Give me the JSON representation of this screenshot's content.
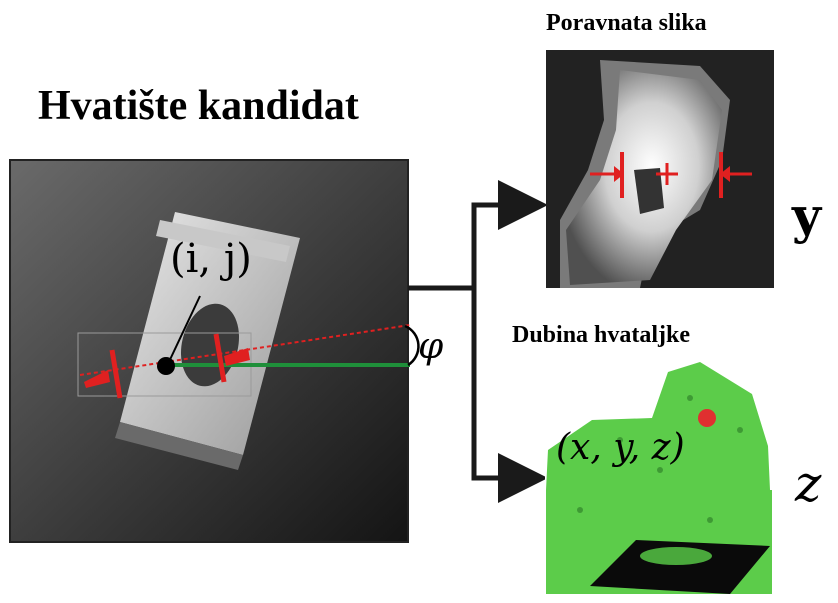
{
  "titles": {
    "grasp_candidate": "Hvatište kandidat",
    "aligned_image": "Poravnata slika",
    "gripper_depth": "Dubina hvataljke"
  },
  "math_labels": {
    "pixel": "(i, j)",
    "angle": "φ",
    "output_y": "y",
    "output_z": "z",
    "point": "(x, y, z)"
  },
  "colors": {
    "marker_red": "#e02020",
    "axis_green": "#1f8f3a",
    "pointcloud_green": "#5ccc4a",
    "arrow": "#1a1a1a"
  }
}
